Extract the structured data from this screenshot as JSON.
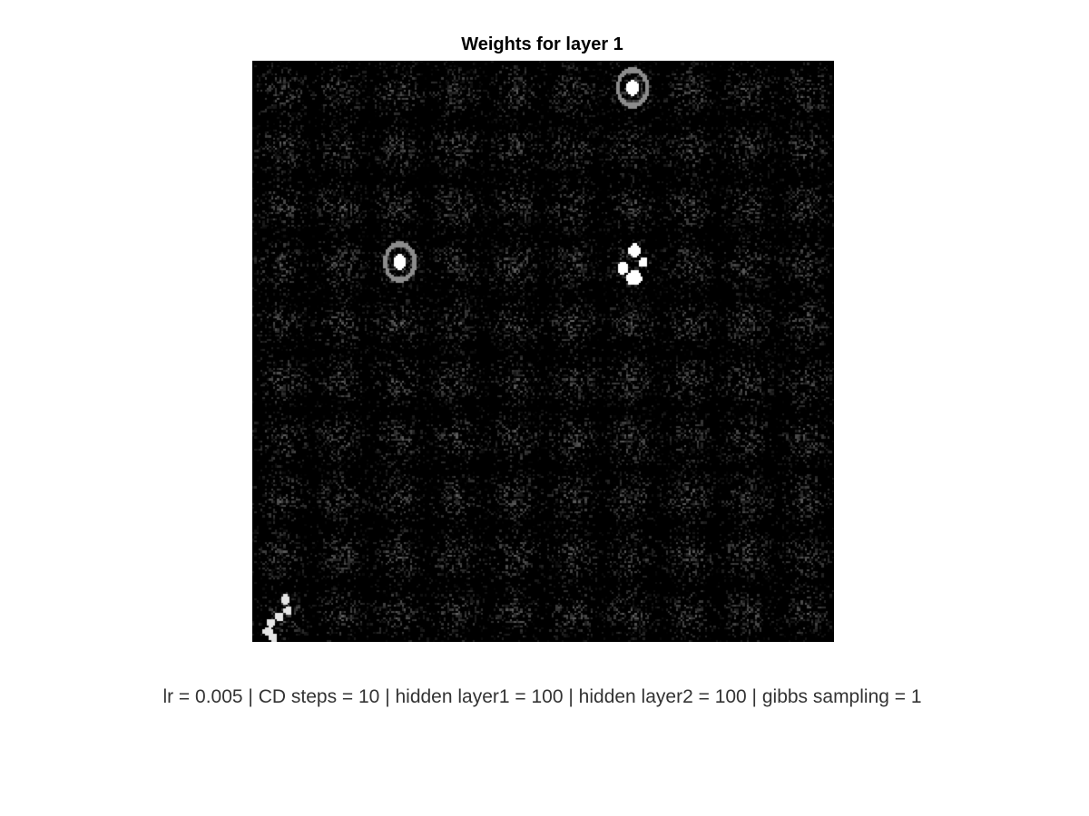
{
  "chart_data": {
    "type": "heatmap",
    "title": "Weights for layer 1",
    "subtitle": "",
    "xlabel": "",
    "ylabel": "",
    "colormap": "gray",
    "grid_rows": 10,
    "grid_cols": 10,
    "tile_pixels": 28,
    "axes_visible": false,
    "background": "#000000",
    "noise_level": 0.3,
    "highlighted_tiles": [
      {
        "row": 0,
        "col": 6,
        "shape": "digit-0"
      },
      {
        "row": 3,
        "col": 2,
        "shape": "digit-0"
      },
      {
        "row": 3,
        "col": 6,
        "shape": "digit-2"
      },
      {
        "row": 9,
        "col": 0,
        "shape": "digit-2"
      }
    ]
  },
  "caption": "lr = 0.005 | CD steps = 10 | hidden layer1 = 100 | hidden layer2 = 100 | gibbs sampling = 1"
}
